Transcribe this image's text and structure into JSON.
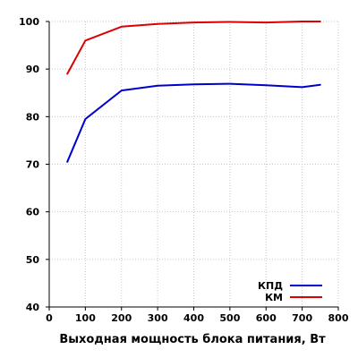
{
  "chart_data": {
    "type": "line",
    "title": "",
    "xlabel": "Выходная мощность блока питания, Вт",
    "ylabel": "",
    "xlim": [
      0,
      800
    ],
    "ylim": [
      40,
      100
    ],
    "x_ticks": [
      0,
      100,
      200,
      300,
      400,
      500,
      600,
      700,
      800
    ],
    "y_ticks": [
      40,
      50,
      60,
      70,
      80,
      90,
      100
    ],
    "grid": true,
    "legend_position": "bottom-right",
    "series": [
      {
        "name": "КПД",
        "color": "#0000cc",
        "x": [
          50,
          100,
          200,
          300,
          400,
          500,
          600,
          700,
          750
        ],
        "values": [
          70.5,
          79.5,
          85.5,
          86.5,
          86.8,
          86.9,
          86.6,
          86.2,
          86.7
        ]
      },
      {
        "name": "КМ",
        "color": "#dd0000",
        "x": [
          50,
          100,
          200,
          300,
          400,
          500,
          600,
          700,
          750
        ],
        "values": [
          89.0,
          96.0,
          98.9,
          99.5,
          99.8,
          99.9,
          99.8,
          100.0,
          100.0
        ]
      }
    ]
  }
}
